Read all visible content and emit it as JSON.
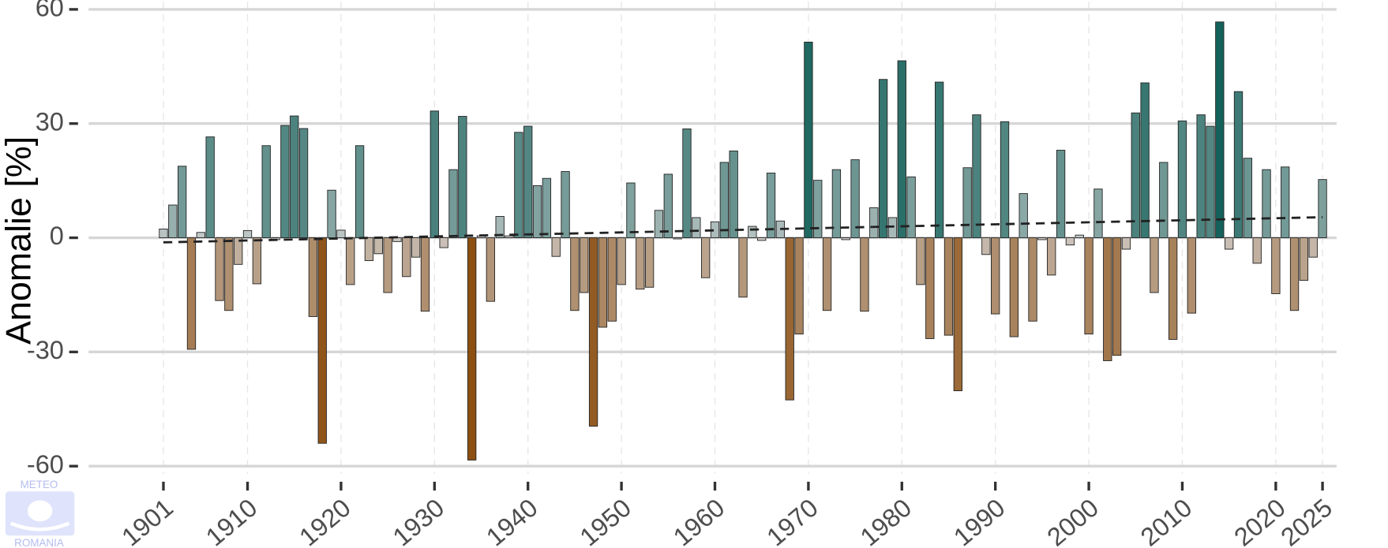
{
  "chart_data": {
    "type": "bar",
    "y_label": "Anomalie [%]",
    "logo_top": "METEO",
    "logo_bottom": "ROMANIA",
    "x": [
      1901,
      1902,
      1903,
      1904,
      1905,
      1906,
      1907,
      1908,
      1909,
      1910,
      1911,
      1912,
      1913,
      1914,
      1915,
      1916,
      1917,
      1918,
      1919,
      1920,
      1921,
      1922,
      1923,
      1924,
      1925,
      1926,
      1927,
      1928,
      1929,
      1930,
      1931,
      1932,
      1933,
      1934,
      1935,
      1936,
      1937,
      1938,
      1939,
      1940,
      1941,
      1942,
      1943,
      1944,
      1945,
      1946,
      1947,
      1948,
      1949,
      1950,
      1951,
      1952,
      1953,
      1954,
      1955,
      1956,
      1957,
      1958,
      1959,
      1960,
      1961,
      1962,
      1963,
      1964,
      1965,
      1966,
      1967,
      1968,
      1969,
      1970,
      1971,
      1972,
      1973,
      1974,
      1975,
      1976,
      1977,
      1978,
      1979,
      1980,
      1981,
      1982,
      1983,
      1984,
      1985,
      1986,
      1987,
      1988,
      1989,
      1990,
      1991,
      1992,
      1993,
      1994,
      1995,
      1996,
      1997,
      1998,
      1999,
      2000,
      2001,
      2002,
      2003,
      2004,
      2005,
      2006,
      2007,
      2008,
      2009,
      2010,
      2011,
      2012,
      2013,
      2014,
      2015,
      2016,
      2017,
      2018,
      2019,
      2020,
      2021,
      2022,
      2023,
      2024,
      2025
    ],
    "values": [
      2.3,
      8.6,
      18.8,
      -29.3,
      1.4,
      26.5,
      -16.5,
      -19.1,
      -7,
      1.9,
      -12.1,
      24.2,
      -0.5,
      29.5,
      32,
      28.7,
      -20.7,
      -54,
      12.5,
      2,
      -12.3,
      24.2,
      -6,
      -4.2,
      -14.4,
      -1,
      -10.2,
      -5.1,
      -19.3,
      33.3,
      -2.6,
      17.9,
      31.9,
      -58.4,
      0.5,
      -16.7,
      5.6,
      0.5,
      27.7,
      29.3,
      13.7,
      15.6,
      -4.9,
      17.4,
      -19.1,
      -14.4,
      -49.5,
      -23.5,
      -21.9,
      -12.3,
      14.4,
      -13.5,
      -13,
      7.2,
      16.7,
      -0.3,
      28.6,
      5.3,
      -10.5,
      4.2,
      19.8,
      22.8,
      -15.6,
      3,
      -0.7,
      17,
      4.4,
      -42.6,
      -25.3,
      51.4,
      15.1,
      -19.1,
      17.9,
      -0.5,
      20.5,
      -19.3,
      7.9,
      41.6,
      5.3,
      46.5,
      16,
      -12.3,
      -26.5,
      40.9,
      -25.6,
      -40.2,
      18.4,
      32.3,
      -4.4,
      -20,
      30.5,
      -26,
      11.6,
      -21.9,
      -0.5,
      -9.8,
      23,
      -1.9,
      0.7,
      -25.3,
      12.8,
      -32.3,
      -30.9,
      -3,
      32.8,
      40.7,
      -14.4,
      19.8,
      -26.7,
      30.7,
      -19.8,
      32.3,
      29.3,
      56.7,
      -3,
      38.4,
      20.9,
      -6.7,
      17.9,
      -14.7,
      18.6,
      -19.1,
      -11.2,
      -5.1,
      15.3
    ],
    "colors": {
      "negative": "#8a4a0a",
      "zero": "#d4d4d4",
      "positive": "#0b5c55"
    },
    "trend": {
      "x": [
        1901,
        2025
      ],
      "values": [
        -1.2,
        5.4
      ]
    },
    "xlim": [
      1893,
      2026.5
    ],
    "xticks": [
      1901,
      1910,
      1920,
      1930,
      1940,
      1950,
      1960,
      1970,
      1980,
      1990,
      2000,
      2010,
      2020,
      2025
    ],
    "ylim": [
      -62,
      62
    ],
    "yticks": [
      -60,
      -30,
      0,
      30,
      60
    ],
    "grid": true
  }
}
